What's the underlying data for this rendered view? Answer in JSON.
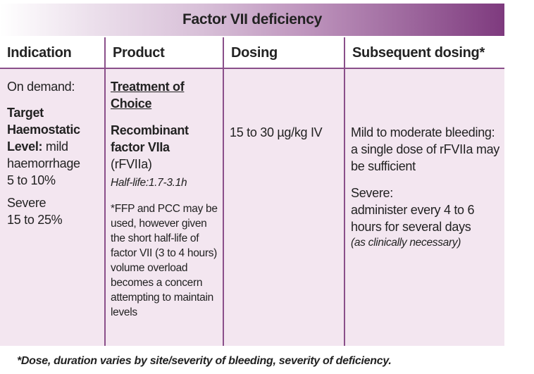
{
  "title": "Factor VII deficiency",
  "headers": {
    "indication": "Indication",
    "product": "Product",
    "dosing": "Dosing",
    "subsequent": "Subsequent dosing*"
  },
  "indication": {
    "on_demand": "On demand:",
    "target_label": "Target Haemostatic Level:",
    "target_value": " mild haemorrhage",
    "mild_range": "5 to 10%",
    "severe_label": "Severe",
    "severe_range": "15 to 25%"
  },
  "product": {
    "treatment_of_choice": "Treatment of Choice",
    "recombinant": "Recombinant factor VIIa",
    "abbrev": "(rFVIIa)",
    "half_life": "Half-life:1.7-3.1h",
    "note": "*FFP and PCC may be used, however given the short half-life of factor VII (3 to 4 hours)  volume overload becomes a concern attempting to maintain levels"
  },
  "dosing": {
    "dose": "15 to 30 µg/kg IV"
  },
  "subsequent": {
    "mild_label": "Mild to moderate bleeding:",
    "mild_text": "a single dose of rFVIIa may be sufficient",
    "severe_label": "Severe:",
    "severe_text": "administer every 4 to 6 hours for several days",
    "severe_note": "(as clinically necessary)"
  },
  "footnote": "*Dose, duration varies by site/severity of bleeding, severity of deficiency."
}
